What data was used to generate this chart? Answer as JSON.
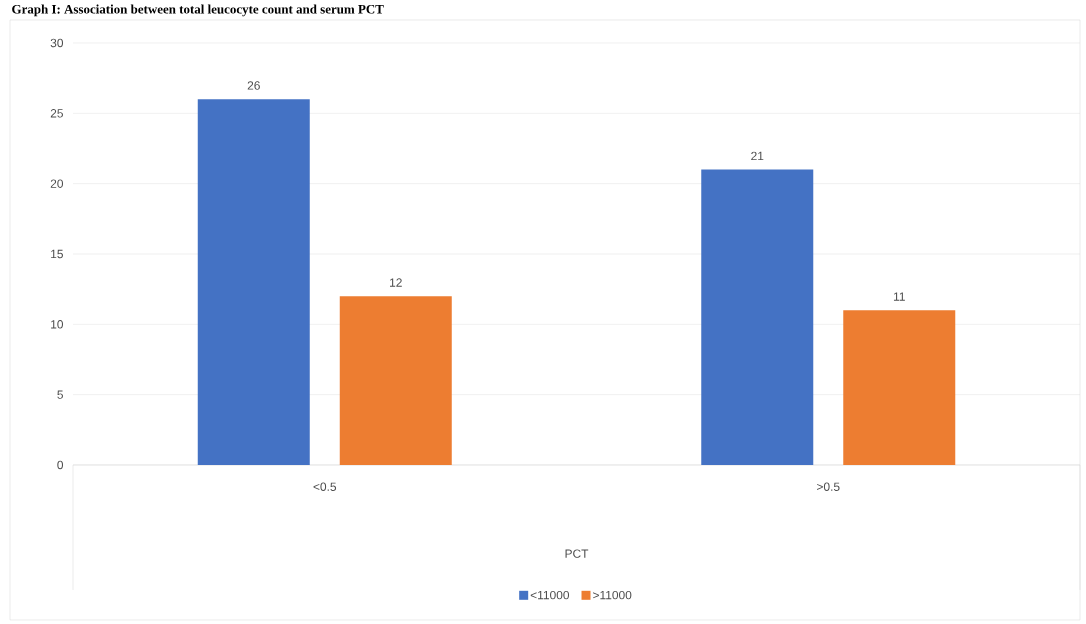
{
  "chart_data": {
    "type": "bar",
    "title": "Graph I: Association between total leucocyte count and serum PCT",
    "xlabel": "PCT",
    "categories": [
      "<0.5",
      ">0.5"
    ],
    "series": [
      {
        "name": "<11000",
        "color": "#4472c4",
        "values": [
          26,
          21
        ]
      },
      {
        "name": ">11000",
        "color": "#ed7d31",
        "values": [
          12,
          11
        ]
      }
    ],
    "ylim": [
      0,
      30
    ],
    "yticks": [
      0,
      5,
      10,
      15,
      20,
      25,
      30
    ],
    "grid": "y",
    "legend": "bottom",
    "data_labels": true
  }
}
